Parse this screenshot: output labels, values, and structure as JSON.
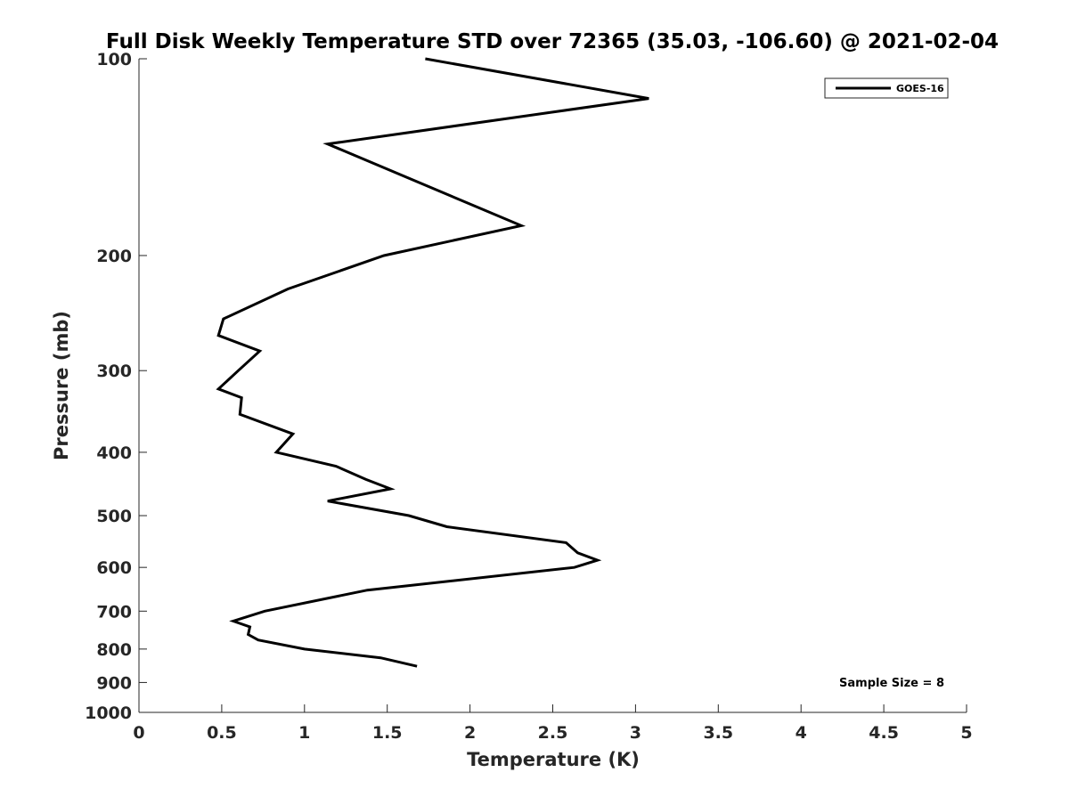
{
  "chart_data": {
    "type": "line",
    "title": "Full Disk Weekly Temperature STD over 72365 (35.03, -106.60) @ 2021-02-04",
    "xlabel": "Temperature (K)",
    "ylabel": "Pressure (mb)",
    "xlim": [
      0,
      5
    ],
    "ylim": [
      1000,
      100
    ],
    "yscale": "log",
    "y_reversed": true,
    "xticks": [
      "0",
      "0.5",
      "1",
      "1.5",
      "2",
      "2.5",
      "3",
      "3.5",
      "4",
      "4.5",
      "5"
    ],
    "yticks": [
      "100",
      "200",
      "300",
      "400",
      "500",
      "600",
      "700",
      "800",
      "900",
      "1000"
    ],
    "grid": false,
    "legend_position": "top-right",
    "annotation": "Sample Size = 8",
    "line_color": "#000000",
    "series": [
      {
        "name": "GOES-16",
        "x": [
          1.73,
          3.08,
          1.14,
          2.31,
          1.48,
          0.9,
          0.51,
          0.48,
          0.73,
          0.6,
          0.48,
          0.62,
          0.61,
          0.93,
          0.83,
          1.19,
          1.37,
          1.52,
          1.14,
          1.63,
          1.86,
          2.58,
          2.65,
          2.77,
          2.63,
          1.38,
          0.76,
          0.57,
          0.67,
          0.66,
          0.72,
          1.0,
          1.46,
          1.68
        ],
        "y": [
          100,
          115,
          135,
          180,
          200,
          225,
          250,
          265,
          280,
          300,
          320,
          330,
          350,
          375,
          400,
          420,
          440,
          455,
          475,
          500,
          520,
          550,
          570,
          585,
          600,
          650,
          700,
          725,
          740,
          760,
          775,
          800,
          825,
          850
        ]
      }
    ]
  }
}
